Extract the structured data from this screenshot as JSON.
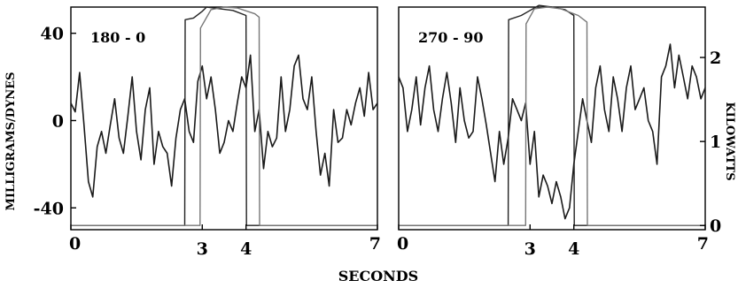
{
  "chart_data": [
    {
      "type": "line",
      "panel": "left",
      "annotation": "180 - 0",
      "xlabel": "SECONDS",
      "ylabel": "MILLIGRAMS/DYNES",
      "xlim": [
        0,
        7
      ],
      "ylim": [
        -50,
        52
      ],
      "y2lim": [
        -0.05,
        2.6
      ],
      "x_ticks": [
        "0",
        "3",
        "4",
        "7"
      ],
      "x_tick_values": [
        0,
        3,
        4,
        7
      ],
      "y_ticks": [
        "40",
        "0",
        "-40"
      ],
      "y_tick_values": [
        40,
        0,
        -40
      ],
      "series": [
        {
          "axis": "y",
          "x": [
            0.0,
            0.1,
            0.2,
            0.3,
            0.4,
            0.5,
            0.6,
            0.7,
            0.8,
            0.9,
            1.0,
            1.1,
            1.2,
            1.3,
            1.4,
            1.5,
            1.6,
            1.7,
            1.8,
            1.9,
            2.0,
            2.1,
            2.2,
            2.3,
            2.4,
            2.5,
            2.6,
            2.7,
            2.8,
            2.9,
            3.0,
            3.1,
            3.2,
            3.3,
            3.4,
            3.5,
            3.6,
            3.7,
            3.8,
            3.9,
            4.0,
            4.1,
            4.2,
            4.3,
            4.4,
            4.5,
            4.6,
            4.7,
            4.8,
            4.9,
            5.0,
            5.1,
            5.2,
            5.3,
            5.4,
            5.5,
            5.6,
            5.7,
            5.8,
            5.9,
            6.0,
            6.1,
            6.2,
            6.3,
            6.4,
            6.5,
            6.6,
            6.7,
            6.8,
            6.9,
            7.0
          ],
          "values": [
            8,
            4,
            22,
            -2,
            -28,
            -35,
            -12,
            -5,
            -15,
            -2,
            10,
            -8,
            -15,
            2,
            20,
            -5,
            -18,
            5,
            15,
            -20,
            -5,
            -12,
            -15,
            -30,
            -8,
            5,
            10,
            -5,
            -10,
            18,
            25,
            10,
            20,
            5,
            -15,
            -10,
            0,
            -5,
            8,
            20,
            15,
            30,
            -5,
            5,
            -22,
            -5,
            -12,
            -8,
            20,
            -5,
            5,
            25,
            30,
            10,
            5,
            20,
            -5,
            -25,
            -15,
            -30,
            5,
            -10,
            -8,
            5,
            -2,
            8,
            15,
            2,
            22,
            5,
            8
          ]
        },
        {
          "axis": "y2",
          "x": [
            0.0,
            2.6,
            2.61,
            2.8,
            3.0,
            3.1,
            3.4,
            3.7,
            4.0,
            4.01,
            4.15,
            7.0
          ],
          "values": [
            0.0,
            0.0,
            2.45,
            2.47,
            2.55,
            2.6,
            2.58,
            2.56,
            2.5,
            0.0,
            0.0,
            0.0
          ]
        },
        {
          "axis": "y2",
          "x": [
            0.0,
            2.95,
            2.96,
            3.2,
            3.5,
            3.8,
            4.2,
            4.3,
            4.31,
            4.45,
            7.0
          ],
          "values": [
            0.0,
            0.0,
            2.35,
            2.57,
            2.6,
            2.59,
            2.52,
            2.48,
            0.0,
            0.0,
            0.0
          ]
        }
      ]
    },
    {
      "type": "line",
      "panel": "right",
      "annotation": "270 - 90",
      "xlabel": "SECONDS",
      "ylabel": "KILOWATTS",
      "xlim": [
        0,
        7
      ],
      "ylim": [
        -50,
        52
      ],
      "y2lim": [
        -0.05,
        2.6
      ],
      "x_ticks": [
        "0",
        "3",
        "4",
        "7"
      ],
      "x_tick_values": [
        0,
        3,
        4,
        7
      ],
      "y2_ticks": [
        "2",
        "1",
        "0"
      ],
      "y2_tick_values": [
        2,
        1,
        0
      ],
      "series": [
        {
          "axis": "y",
          "x": [
            0.0,
            0.1,
            0.2,
            0.3,
            0.4,
            0.5,
            0.6,
            0.7,
            0.8,
            0.9,
            1.0,
            1.1,
            1.2,
            1.3,
            1.4,
            1.5,
            1.6,
            1.7,
            1.8,
            1.9,
            2.0,
            2.1,
            2.2,
            2.3,
            2.4,
            2.5,
            2.6,
            2.7,
            2.8,
            2.9,
            3.0,
            3.1,
            3.2,
            3.3,
            3.4,
            3.5,
            3.6,
            3.7,
            3.8,
            3.9,
            4.0,
            4.1,
            4.2,
            4.3,
            4.4,
            4.5,
            4.6,
            4.7,
            4.8,
            4.9,
            5.0,
            5.1,
            5.2,
            5.3,
            5.4,
            5.5,
            5.6,
            5.7,
            5.8,
            5.9,
            6.0,
            6.1,
            6.2,
            6.3,
            6.4,
            6.5,
            6.6,
            6.7,
            6.8,
            6.9,
            7.0
          ],
          "values": [
            20,
            15,
            -5,
            5,
            20,
            -2,
            15,
            25,
            5,
            -5,
            10,
            22,
            8,
            -10,
            15,
            0,
            -8,
            -5,
            20,
            10,
            -2,
            -15,
            -28,
            -5,
            -20,
            -8,
            10,
            5,
            0,
            8,
            -20,
            -5,
            -35,
            -25,
            -30,
            -38,
            -28,
            -35,
            -45,
            -40,
            -20,
            -5,
            10,
            0,
            -10,
            15,
            25,
            5,
            -5,
            20,
            10,
            -5,
            15,
            25,
            5,
            10,
            15,
            0,
            -5,
            -20,
            20,
            25,
            35,
            15,
            30,
            20,
            10,
            25,
            20,
            10,
            15
          ]
        },
        {
          "axis": "y2",
          "x": [
            0.0,
            2.5,
            2.51,
            2.8,
            3.0,
            3.2,
            3.5,
            3.8,
            4.0,
            4.01,
            4.2,
            7.0
          ],
          "values": [
            0.0,
            0.0,
            2.45,
            2.5,
            2.56,
            2.62,
            2.6,
            2.57,
            2.5,
            0.0,
            0.0,
            0.0
          ]
        },
        {
          "axis": "y2",
          "x": [
            0.0,
            2.9,
            2.91,
            3.1,
            3.4,
            3.7,
            4.1,
            4.3,
            4.31,
            4.5,
            7.0
          ],
          "values": [
            0.0,
            0.0,
            2.4,
            2.58,
            2.6,
            2.58,
            2.5,
            2.42,
            0.0,
            0.0,
            0.0
          ]
        }
      ]
    }
  ]
}
